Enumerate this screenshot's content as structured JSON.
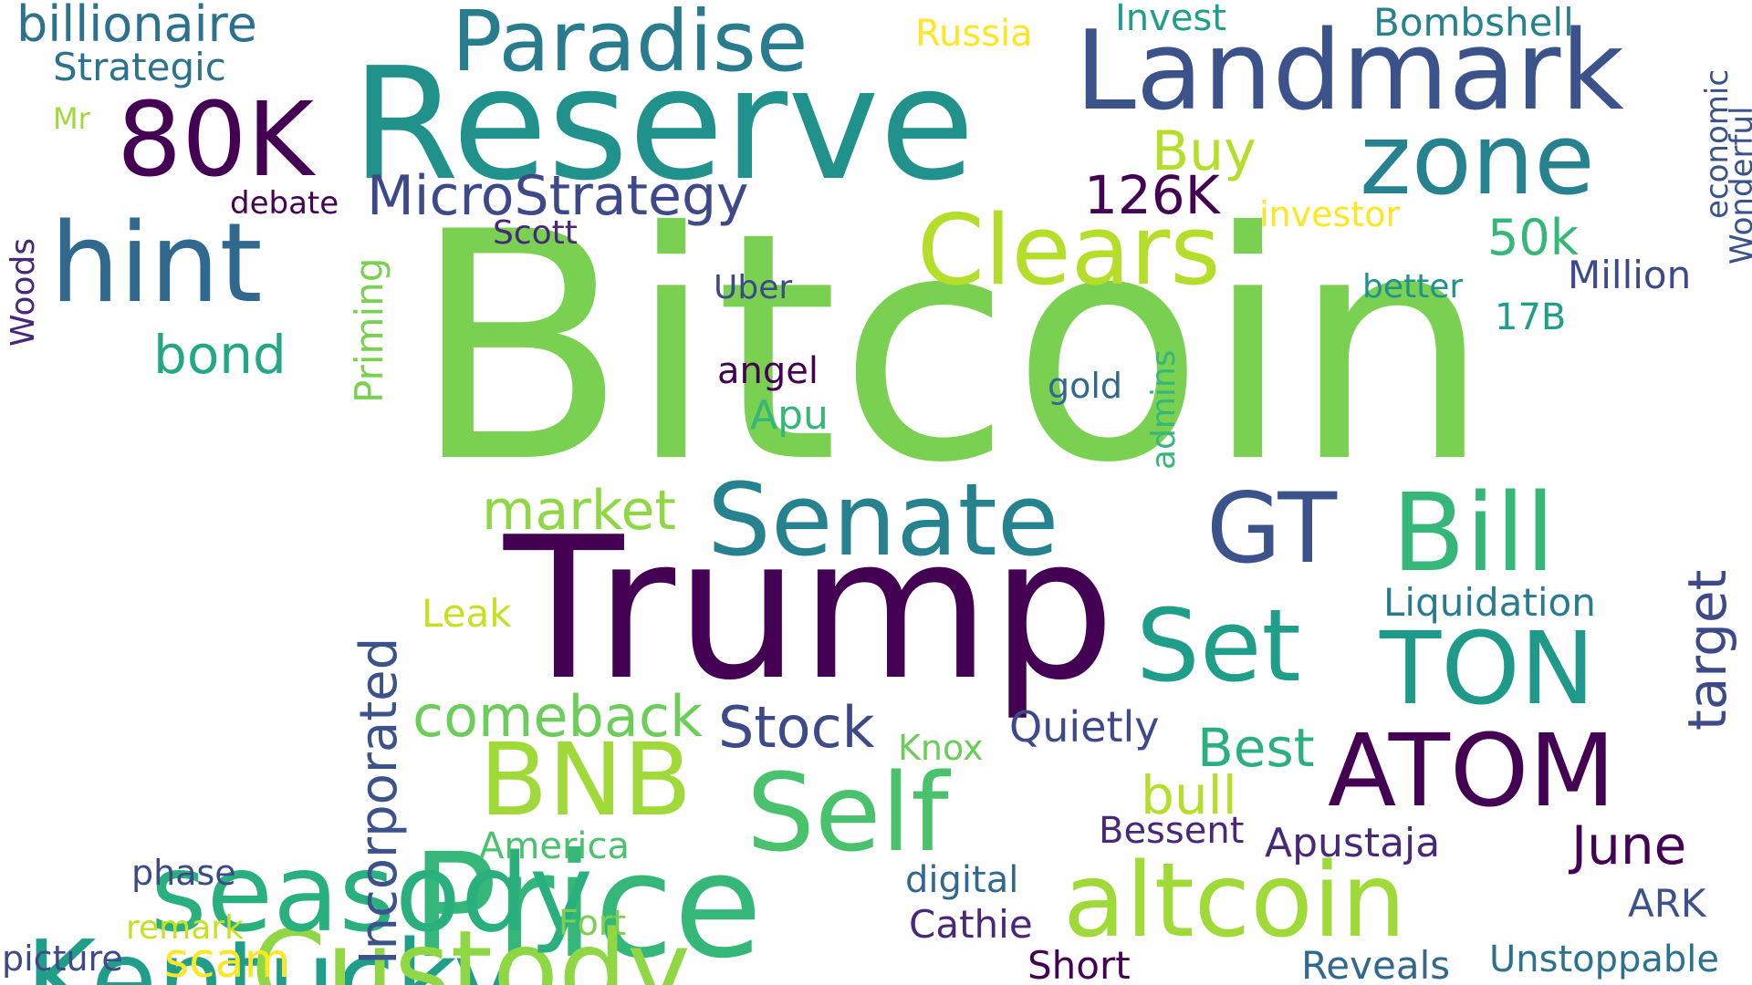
{
  "words": [
    {
      "key": "bitcoin",
      "text": "Bitcoin",
      "color": "#7ad151"
    },
    {
      "key": "trump",
      "text": "Trump",
      "color": "#440154"
    },
    {
      "key": "reserve",
      "text": "Reserve",
      "color": "#21918c"
    },
    {
      "key": "price",
      "text": "Price",
      "color": "#35b779"
    },
    {
      "key": "landmark",
      "text": "Landmark",
      "color": "#3b528b"
    },
    {
      "key": "kentucky",
      "text": "Kentucky",
      "color": "#1f9e89"
    },
    {
      "key": "custody",
      "text": "Custody",
      "color": "#8fd744"
    },
    {
      "key": "seasody",
      "text": "seasody",
      "color": "#2ab07f"
    },
    {
      "key": "hint",
      "text": "hint",
      "color": "#31688e"
    },
    {
      "key": "80k",
      "text": "80K",
      "color": "#440154"
    },
    {
      "key": "paradise",
      "text": "Paradise",
      "color": "#287c8e"
    },
    {
      "key": "zone",
      "text": "zone",
      "color": "#26828e"
    },
    {
      "key": "clears",
      "text": "Clears",
      "color": "#b5de2b"
    },
    {
      "key": "senate",
      "text": "Senate",
      "color": "#26828e"
    },
    {
      "key": "gt",
      "text": "GT",
      "color": "#3b528b"
    },
    {
      "key": "bill",
      "text": "Bill",
      "color": "#35b779"
    },
    {
      "key": "set",
      "text": "Set",
      "color": "#1f9e89"
    },
    {
      "key": "ton",
      "text": "TON",
      "color": "#1f9a8a"
    },
    {
      "key": "bnb",
      "text": "BNB",
      "color": "#a0da39"
    },
    {
      "key": "self",
      "text": "Self",
      "color": "#4ac16d"
    },
    {
      "key": "atom",
      "text": "ATOM",
      "color": "#440154"
    },
    {
      "key": "altcoin",
      "text": "altcoin",
      "color": "#a0da39"
    },
    {
      "key": "billionaire",
      "text": "billionaire",
      "color": "#2c728e"
    },
    {
      "key": "strategic",
      "text": "Strategic",
      "color": "#2c728e"
    },
    {
      "key": "mr",
      "text": "Mr",
      "color": "#a0da39"
    },
    {
      "key": "russia",
      "text": "Russia",
      "color": "#fde725"
    },
    {
      "key": "invest",
      "text": "Invest",
      "color": "#1f9e89"
    },
    {
      "key": "bombshell",
      "text": "Bombshell",
      "color": "#26828e"
    },
    {
      "key": "economic",
      "text": "economic",
      "color": "#3b528b"
    },
    {
      "key": "wonderful",
      "text": "Wonderful",
      "color": "#3b528b"
    },
    {
      "key": "microstrategy",
      "text": "MicroStrategy",
      "color": "#3e4989"
    },
    {
      "key": "debate",
      "text": "debate",
      "color": "#440154"
    },
    {
      "key": "buy",
      "text": "Buy",
      "color": "#b5de2b"
    },
    {
      "key": "126k",
      "text": "126K",
      "color": "#440154"
    },
    {
      "key": "investor",
      "text": "investor",
      "color": "#fde725"
    },
    {
      "key": "scott",
      "text": "Scott",
      "color": "#482878"
    },
    {
      "key": "50k",
      "text": "50k",
      "color": "#35b779"
    },
    {
      "key": "million",
      "text": "Million",
      "color": "#3e4989"
    },
    {
      "key": "better",
      "text": "better",
      "color": "#21918c"
    },
    {
      "key": "uber",
      "text": "Uber",
      "color": "#3e4989"
    },
    {
      "key": "17b",
      "text": "17B",
      "color": "#1f9e89"
    },
    {
      "key": "woods",
      "text": "Woods",
      "color": "#482878"
    },
    {
      "key": "priming",
      "text": "Priming",
      "color": "#7ad151"
    },
    {
      "key": "bond",
      "text": "bond",
      "color": "#22a884"
    },
    {
      "key": "angel",
      "text": "angel",
      "color": "#440154"
    },
    {
      "key": "gold",
      "text": "gold",
      "color": "#31688e"
    },
    {
      "key": "admins",
      "text": "admins",
      "color": "#35b779"
    },
    {
      "key": "apu",
      "text": "Apu",
      "color": "#35b779"
    },
    {
      "key": "market",
      "text": "market",
      "color": "#8fd744"
    },
    {
      "key": "target",
      "text": "target",
      "color": "#3e4989"
    },
    {
      "key": "liquidation",
      "text": "Liquidation",
      "color": "#287c8e"
    },
    {
      "key": "leak",
      "text": "Leak",
      "color": "#c8e020"
    },
    {
      "key": "incorporated",
      "text": "Incorporated",
      "color": "#3b528b"
    },
    {
      "key": "comeback",
      "text": "comeback",
      "color": "#6ccd5a"
    },
    {
      "key": "stock",
      "text": "Stock",
      "color": "#3e4989"
    },
    {
      "key": "knox",
      "text": "Knox",
      "color": "#6ccd5a"
    },
    {
      "key": "quietly",
      "text": "Quietly",
      "color": "#3e4989"
    },
    {
      "key": "best",
      "text": "Best",
      "color": "#2ab07f"
    },
    {
      "key": "bull",
      "text": "bull",
      "color": "#b5de2b"
    },
    {
      "key": "june",
      "text": "June",
      "color": "#440154"
    },
    {
      "key": "america",
      "text": "America",
      "color": "#4ac16d"
    },
    {
      "key": "bessent",
      "text": "Bessent",
      "color": "#482878"
    },
    {
      "key": "apustaja",
      "text": "Apustaja",
      "color": "#482878"
    },
    {
      "key": "phase",
      "text": "phase",
      "color": "#3e4989"
    },
    {
      "key": "digital",
      "text": "digital",
      "color": "#31688e"
    },
    {
      "key": "ark",
      "text": "ARK",
      "color": "#3b528b"
    },
    {
      "key": "remark",
      "text": "remark",
      "color": "#c8e020"
    },
    {
      "key": "fort",
      "text": "Fort",
      "color": "#7ad151"
    },
    {
      "key": "cathie",
      "text": "Cathie",
      "color": "#482878"
    },
    {
      "key": "picture",
      "text": "picture",
      "color": "#3e4989"
    },
    {
      "key": "scam",
      "text": "scam",
      "color": "#fde725"
    },
    {
      "key": "short",
      "text": "Short",
      "color": "#440154"
    },
    {
      "key": "reveals",
      "text": "Reveals",
      "color": "#31688e"
    },
    {
      "key": "unstoppable",
      "text": "Unstoppable",
      "color": "#2c728e"
    }
  ]
}
